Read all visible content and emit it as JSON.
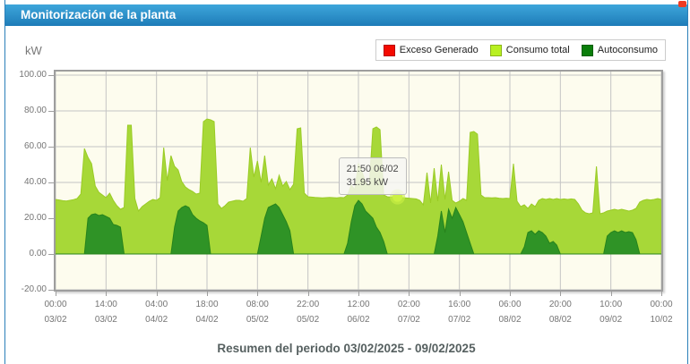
{
  "header": {
    "title": "Monitorización de la planta"
  },
  "summary_text": "Resumen del periodo 03/02/2025 - 09/02/2025",
  "chart": {
    "unit_label": "kW",
    "legend_items": [
      {
        "label": "Exceso Generado",
        "color": "#f40a00",
        "icon": "red-swatch"
      },
      {
        "label": "Consumo total",
        "color": "#b8f020",
        "icon": "yellowgreen-swatch"
      },
      {
        "label": "Autoconsumo",
        "color": "#0b7e0b",
        "icon": "darkgreen-swatch"
      }
    ],
    "tooltip": {
      "time_line": "21:50 06/02",
      "value_line": "31.95 kW",
      "hour": 94.83,
      "value": 31.95,
      "marker_color": "#cbf143"
    }
  },
  "chart_data": {
    "type": "area",
    "title": "",
    "ylabel": "kW",
    "x_unit": "hours since 03/02/2025 00:00",
    "x_range": [
      0,
      168
    ],
    "y_range_visible": [
      -20,
      102
    ],
    "grid": true,
    "legend_position": "top-right",
    "plot_bg": "#fdfcee",
    "grid_color": "#c4c4c4",
    "yticks": {
      "values": [
        100,
        80,
        60,
        40,
        20,
        0,
        -20
      ],
      "labels": [
        "100.00",
        "80.00",
        "60.00",
        "40.00",
        "20.00",
        "0.00",
        "-20.00"
      ]
    },
    "xticks": [
      {
        "hour": 0,
        "time": "00:00",
        "date": "03/02"
      },
      {
        "hour": 14,
        "time": "14:00",
        "date": "03/02"
      },
      {
        "hour": 28,
        "time": "04:00",
        "date": "04/02"
      },
      {
        "hour": 42,
        "time": "18:00",
        "date": "04/02"
      },
      {
        "hour": 56,
        "time": "08:00",
        "date": "05/02"
      },
      {
        "hour": 70,
        "time": "22:00",
        "date": "05/02"
      },
      {
        "hour": 84,
        "time": "12:00",
        "date": "06/02"
      },
      {
        "hour": 98,
        "time": "02:00",
        "date": "07/02"
      },
      {
        "hour": 112,
        "time": "16:00",
        "date": "07/02"
      },
      {
        "hour": 126,
        "time": "06:00",
        "date": "08/02"
      },
      {
        "hour": 140,
        "time": "20:00",
        "date": "08/02"
      },
      {
        "hour": 154,
        "time": "10:00",
        "date": "09/02"
      },
      {
        "hour": 168,
        "time": "00:00",
        "date": "10/02"
      }
    ],
    "series": [
      {
        "name": "Exceso Generado",
        "fill": "#f40a00",
        "stroke": "#d00900",
        "all_zero": true,
        "values": []
      },
      {
        "name": "Consumo total",
        "fill": "#a7d838",
        "stroke": "#9acb25",
        "values": [
          30.5,
          30.2,
          29.8,
          29.6,
          30.0,
          30.4,
          31.0,
          33.5,
          59.0,
          54.0,
          50.5,
          38.0,
          34.5,
          33.0,
          31.5,
          34.0,
          30.0,
          27.0,
          25.0,
          26.0,
          72.0,
          72.0,
          31.0,
          24.0,
          26.5,
          28.0,
          29.5,
          30.5,
          30.0,
          31.5,
          59.5,
          41.0,
          55.0,
          49.0,
          47.0,
          40.5,
          37.5,
          36.0,
          35.0,
          33.5,
          34.0,
          74.0,
          75.5,
          75.0,
          74.0,
          28.0,
          25.5,
          27.0,
          29.0,
          29.5,
          30.0,
          30.0,
          29.5,
          31.0,
          59.5,
          43.0,
          52.0,
          40.0,
          55.0,
          38.5,
          42.0,
          36.5,
          44.0,
          38.0,
          40.5,
          36.0,
          39.0,
          70.0,
          70.5,
          34.0,
          32.0,
          31.8,
          31.6,
          31.5,
          31.4,
          31.5,
          31.6,
          31.5,
          31.4,
          31.6,
          31.5,
          33.0,
          38.5,
          36.0,
          50.5,
          46.0,
          40.0,
          38.5,
          70.0,
          71.0,
          69.5,
          33.0,
          32.0,
          31.8,
          32.0,
          31.9,
          31.5,
          31.4,
          31.2,
          31.0,
          30.8,
          30.0,
          27.5,
          45.5,
          28.5,
          48.0,
          29.5,
          50.0,
          30.5,
          46.0,
          30.0,
          28.5,
          29.5,
          31.0,
          30.0,
          68.0,
          68.5,
          67.0,
          33.0,
          31.5,
          31.5,
          31.4,
          31.5,
          31.2,
          31.0,
          31.2,
          31.0,
          50.5,
          29.5,
          26.5,
          27.5,
          25.5,
          28.0,
          26.5,
          30.0,
          31.0,
          30.5,
          31.0,
          30.5,
          31.0,
          30.5,
          30.8,
          30.5,
          30.8,
          30.5,
          28.0,
          24.5,
          23.0,
          22.5,
          23.0,
          49.0,
          22.5,
          23.0,
          24.0,
          24.5,
          25.0,
          24.5,
          25.0,
          24.5,
          24.0,
          24.5,
          25.5,
          29.0,
          30.0,
          30.5,
          30.2,
          30.5,
          31.0,
          30.5
        ]
      },
      {
        "name": "Autoconsumo",
        "fill": "#2f9326",
        "stroke": "#27831c",
        "values": [
          0,
          0,
          0,
          0,
          0,
          0,
          0,
          0,
          0,
          20,
          22,
          22.5,
          21.5,
          22,
          21,
          20,
          16.5,
          16,
          15,
          0,
          0,
          0,
          0,
          0,
          0,
          0,
          0,
          0,
          0,
          0,
          0,
          0,
          0,
          15,
          24,
          26,
          27,
          26,
          22,
          20,
          18.5,
          17.5,
          16,
          0,
          0,
          0,
          0,
          0,
          0,
          0,
          0,
          0,
          0,
          0,
          0,
          0,
          0,
          10,
          20,
          26,
          27,
          28,
          26,
          22,
          18,
          13,
          0,
          0,
          0,
          0,
          0,
          0,
          0,
          0,
          0,
          0,
          0,
          0,
          0,
          0,
          0,
          6,
          18,
          27,
          30,
          28,
          24,
          22,
          20,
          15,
          12,
          7,
          0,
          0,
          0,
          0,
          0,
          0,
          0,
          0,
          0,
          0,
          0,
          0,
          0,
          0,
          10,
          24,
          12,
          25,
          20,
          26,
          22,
          18,
          12,
          6,
          0,
          0,
          0,
          0,
          0,
          0,
          0,
          0,
          0,
          0,
          0,
          0,
          0,
          0,
          4,
          12,
          13,
          11,
          13,
          12,
          10,
          6,
          7,
          5,
          0,
          0,
          0,
          0,
          0,
          0,
          0,
          0,
          0,
          0,
          0,
          0,
          0,
          10,
          12,
          13,
          12,
          13,
          12,
          12.5,
          12,
          8,
          0,
          0,
          0,
          0,
          0,
          0,
          0
        ]
      }
    ]
  }
}
